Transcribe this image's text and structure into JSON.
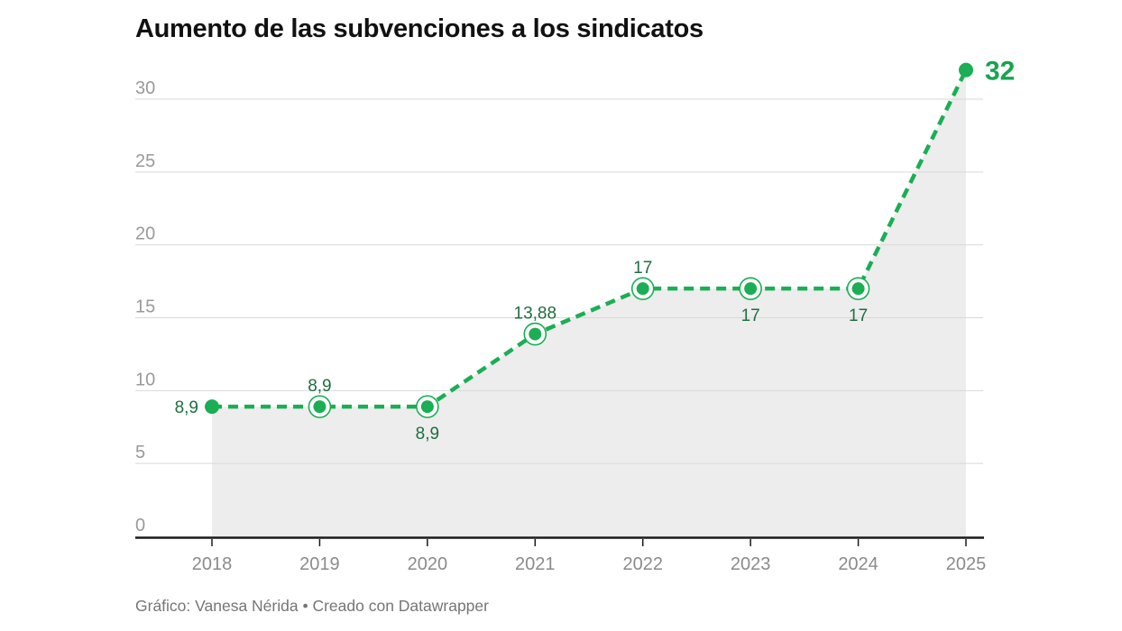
{
  "title": "Aumento de las subvenciones a los sindicatos",
  "footer": "Gráfico: Vanesa Nérida • Creado con Datawrapper",
  "colors": {
    "line_green": "#1bae54",
    "label_green_dark": "#1e6e41",
    "big_label_green": "#17a54e",
    "area_fill": "#ededed",
    "gridline": "#d9d9d9",
    "axis_line": "#1a1a1a",
    "ytick_label": "#9a9a9a",
    "xtick_label": "#8b8b8b",
    "title_color": "#111111",
    "footer_color": "#767676"
  },
  "chart_data": {
    "type": "line",
    "title": "Aumento de las subvenciones a los sindicatos",
    "categories": [
      "2018",
      "2019",
      "2020",
      "2021",
      "2022",
      "2023",
      "2024",
      "2025"
    ],
    "values": [
      8.9,
      8.9,
      8.9,
      13.88,
      17,
      17,
      17,
      32
    ],
    "value_labels": [
      "8,9",
      "8,9",
      "8,9",
      "13,88",
      "17",
      "17",
      "17",
      "32"
    ],
    "value_label_positions": [
      "left",
      "above",
      "below",
      "above",
      "above",
      "below",
      "below",
      "right"
    ],
    "yticks": [
      0,
      5,
      10,
      15,
      20,
      25,
      30
    ],
    "ylim": [
      0,
      32
    ],
    "xlabel": "",
    "ylabel": "",
    "grid": true,
    "line_style": "dashed",
    "area_fill": true,
    "legend": "none",
    "credit": "Gráfico: Vanesa Nérida • Creado con Datawrapper"
  }
}
